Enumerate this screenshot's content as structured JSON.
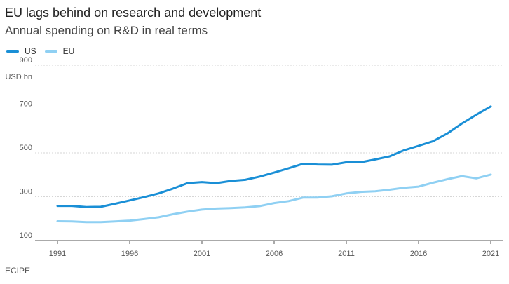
{
  "title": "EU lags behind on research and development",
  "subtitle": "Annual spending on R&D in real terms",
  "source": "ECIPE",
  "chart_data": {
    "type": "line",
    "title": "EU lags behind on research and development",
    "subtitle": "Annual spending on R&D in real terms",
    "ylabel": "USD bn",
    "xlabel": "",
    "ylim": [
      100,
      900
    ],
    "yticks": [
      "900",
      "700",
      "500",
      "300",
      "100"
    ],
    "xticks": [
      "1991",
      "1996",
      "2001",
      "2006",
      "2011",
      "2016",
      "2021"
    ],
    "grid": true,
    "legend_position": "top-left",
    "x": [
      1991,
      1992,
      1993,
      1994,
      1995,
      1996,
      1997,
      1998,
      1999,
      2000,
      2001,
      2002,
      2003,
      2004,
      2005,
      2006,
      2007,
      2008,
      2009,
      2010,
      2011,
      2012,
      2013,
      2014,
      2015,
      2016,
      2017,
      2018,
      2019,
      2020,
      2021
    ],
    "series": [
      {
        "name": "US",
        "color": "#1a8fd6",
        "values": [
          258,
          258,
          253,
          254,
          268,
          283,
          298,
          315,
          337,
          362,
          367,
          362,
          372,
          377,
          392,
          410,
          430,
          450,
          447,
          446,
          457,
          457,
          470,
          484,
          512,
          532,
          553,
          589,
          634,
          674,
          712
        ]
      },
      {
        "name": "EU",
        "color": "#8fd0f3",
        "values": [
          188,
          187,
          184,
          184,
          187,
          191,
          198,
          206,
          220,
          232,
          241,
          246,
          248,
          251,
          257,
          271,
          280,
          296,
          296,
          302,
          315,
          322,
          325,
          332,
          341,
          346,
          364,
          380,
          394,
          384,
          401
        ]
      }
    ]
  }
}
